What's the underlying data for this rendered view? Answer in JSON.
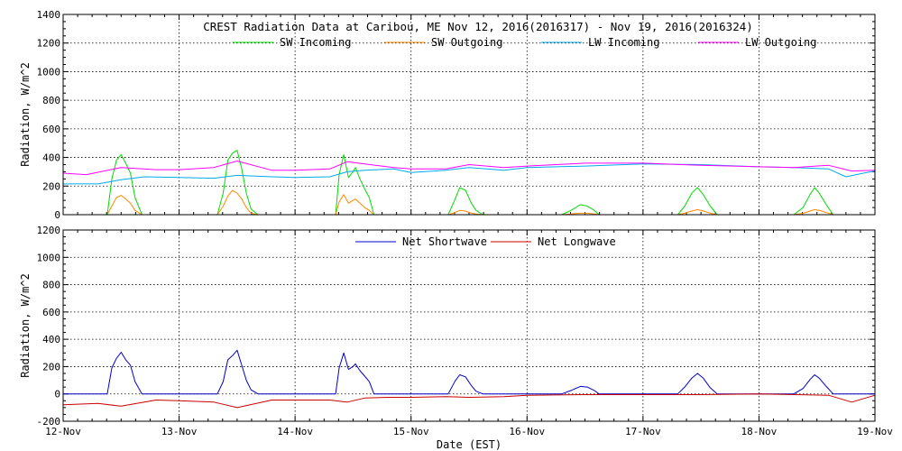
{
  "chart_data": [
    {
      "type": "line",
      "title": "CREST Radiation Data at Caribou, ME   Nov 12, 2016(2016317) - Nov 19, 2016(2016324)",
      "xlabel": "",
      "ylabel": "Radiation, W/m^2",
      "x_unit": "day offset from 12-Nov",
      "xlim": [
        0,
        7
      ],
      "ylim": [
        0,
        1400
      ],
      "yticks": [
        0,
        200,
        400,
        600,
        800,
        1000,
        1200,
        1400
      ],
      "grid": true,
      "legend_position": "top-center",
      "series": [
        {
          "name": "SW Incoming",
          "color": "#00dd00",
          "x": [
            0.0,
            0.38,
            0.42,
            0.46,
            0.5,
            0.54,
            0.58,
            0.62,
            0.68,
            1.0,
            1.33,
            1.38,
            1.42,
            1.46,
            1.5,
            1.54,
            1.58,
            1.62,
            1.68,
            2.0,
            2.35,
            2.38,
            2.42,
            2.46,
            2.5,
            2.52,
            2.56,
            2.6,
            2.64,
            2.68,
            3.0,
            3.32,
            3.38,
            3.42,
            3.47,
            3.52,
            3.56,
            3.62,
            4.0,
            4.3,
            4.38,
            4.46,
            4.52,
            4.58,
            4.62,
            5.0,
            5.3,
            5.36,
            5.42,
            5.47,
            5.52,
            5.58,
            5.64,
            6.0,
            6.3,
            6.38,
            6.44,
            6.48,
            6.52,
            6.58,
            6.64,
            7.0
          ],
          "y": [
            0,
            0,
            250,
            380,
            420,
            360,
            290,
            120,
            0,
            0,
            0,
            150,
            380,
            430,
            450,
            320,
            150,
            40,
            0,
            0,
            0,
            280,
            420,
            260,
            300,
            330,
            250,
            180,
            120,
            0,
            0,
            0,
            110,
            190,
            170,
            80,
            30,
            0,
            0,
            0,
            30,
            70,
            60,
            30,
            0,
            0,
            0,
            60,
            150,
            190,
            140,
            60,
            0,
            0,
            0,
            50,
            140,
            190,
            150,
            70,
            0,
            0
          ]
        },
        {
          "name": "SW Outgoing",
          "color": "#ff8800",
          "x": [
            0.0,
            0.38,
            0.42,
            0.46,
            0.5,
            0.54,
            0.58,
            0.62,
            0.68,
            1.0,
            1.33,
            1.38,
            1.42,
            1.46,
            1.5,
            1.54,
            1.58,
            1.62,
            1.68,
            2.0,
            2.35,
            2.38,
            2.42,
            2.46,
            2.5,
            2.52,
            2.56,
            2.6,
            2.64,
            2.68,
            3.0,
            3.32,
            3.38,
            3.42,
            3.47,
            3.52,
            3.56,
            3.62,
            4.0,
            4.3,
            4.38,
            4.46,
            4.52,
            4.58,
            4.62,
            5.0,
            5.3,
            5.36,
            5.42,
            5.47,
            5.52,
            5.58,
            5.64,
            6.0,
            6.3,
            6.38,
            6.44,
            6.48,
            6.52,
            6.58,
            6.64,
            7.0
          ],
          "y": [
            0,
            0,
            60,
            120,
            135,
            110,
            80,
            30,
            0,
            0,
            0,
            60,
            130,
            170,
            150,
            110,
            50,
            10,
            0,
            0,
            0,
            90,
            140,
            80,
            100,
            110,
            80,
            50,
            30,
            0,
            0,
            0,
            15,
            30,
            25,
            10,
            5,
            0,
            0,
            0,
            5,
            10,
            10,
            5,
            0,
            0,
            0,
            10,
            25,
            35,
            25,
            10,
            0,
            0,
            0,
            10,
            25,
            35,
            30,
            15,
            0,
            0
          ]
        },
        {
          "name": "LW Incoming",
          "color": "#00aaee",
          "x": [
            0.0,
            0.3,
            0.5,
            0.7,
            1.0,
            1.3,
            1.5,
            1.8,
            2.0,
            2.3,
            2.45,
            2.6,
            2.85,
            3.0,
            3.3,
            3.5,
            3.8,
            4.0,
            4.5,
            5.0,
            5.5,
            6.0,
            6.3,
            6.6,
            6.75,
            6.9,
            7.0
          ],
          "y": [
            215,
            215,
            245,
            265,
            260,
            255,
            275,
            265,
            260,
            265,
            300,
            310,
            320,
            295,
            310,
            330,
            310,
            330,
            340,
            355,
            350,
            335,
            330,
            320,
            265,
            290,
            305
          ]
        },
        {
          "name": "LW Outgoing",
          "color": "#ff00ff",
          "x": [
            0.0,
            0.2,
            0.5,
            0.8,
            1.0,
            1.3,
            1.5,
            1.8,
            2.0,
            2.3,
            2.45,
            2.6,
            2.85,
            3.0,
            3.3,
            3.5,
            3.8,
            4.0,
            4.5,
            5.0,
            5.5,
            6.0,
            6.3,
            6.6,
            6.8,
            7.0
          ],
          "y": [
            290,
            280,
            330,
            315,
            315,
            330,
            375,
            310,
            310,
            320,
            370,
            355,
            330,
            320,
            320,
            350,
            330,
            340,
            360,
            360,
            345,
            335,
            330,
            345,
            305,
            310
          ]
        }
      ]
    },
    {
      "type": "line",
      "title": "",
      "xlabel": "Date (EST)",
      "ylabel": "Radiation, W/m^2",
      "x_unit": "day offset from 12-Nov",
      "xlim": [
        0,
        7
      ],
      "ylim": [
        -200,
        1200
      ],
      "yticks": [
        -200,
        0,
        200,
        400,
        600,
        800,
        1000,
        1200
      ],
      "categories": [
        "12-Nov",
        "13-Nov",
        "14-Nov",
        "15-Nov",
        "16-Nov",
        "17-Nov",
        "18-Nov",
        "19-Nov"
      ],
      "grid": true,
      "legend_position": "top-center",
      "series": [
        {
          "name": "Net Shortwave",
          "color": "#0000cc",
          "x": [
            0.0,
            0.38,
            0.42,
            0.46,
            0.5,
            0.54,
            0.58,
            0.62,
            0.68,
            1.0,
            1.33,
            1.38,
            1.42,
            1.46,
            1.5,
            1.54,
            1.58,
            1.62,
            1.68,
            2.0,
            2.35,
            2.38,
            2.42,
            2.46,
            2.5,
            2.52,
            2.56,
            2.6,
            2.64,
            2.68,
            3.0,
            3.32,
            3.38,
            3.42,
            3.47,
            3.52,
            3.56,
            3.62,
            4.0,
            4.3,
            4.38,
            4.46,
            4.52,
            4.58,
            4.62,
            5.0,
            5.3,
            5.36,
            5.42,
            5.47,
            5.52,
            5.58,
            5.64,
            6.0,
            6.3,
            6.38,
            6.44,
            6.48,
            6.52,
            6.58,
            6.64,
            7.0
          ],
          "y": [
            0,
            0,
            190,
            260,
            305,
            250,
            210,
            90,
            0,
            0,
            0,
            90,
            250,
            280,
            320,
            210,
            100,
            30,
            0,
            0,
            0,
            190,
            300,
            180,
            200,
            220,
            170,
            130,
            90,
            0,
            0,
            0,
            95,
            140,
            125,
            60,
            20,
            0,
            0,
            0,
            25,
            55,
            50,
            25,
            0,
            0,
            0,
            50,
            115,
            150,
            115,
            45,
            0,
            0,
            0,
            40,
            105,
            140,
            115,
            55,
            0,
            0
          ]
        },
        {
          "name": "Net Longwave",
          "color": "#cc0000",
          "x": [
            0.0,
            0.3,
            0.5,
            0.8,
            1.0,
            1.3,
            1.5,
            1.8,
            2.0,
            2.3,
            2.45,
            2.6,
            2.8,
            3.0,
            3.3,
            3.5,
            3.8,
            4.0,
            4.5,
            5.0,
            5.5,
            6.0,
            6.3,
            6.6,
            6.8,
            7.0
          ],
          "y": [
            -80,
            -70,
            -90,
            -45,
            -50,
            -60,
            -100,
            -45,
            -45,
            -45,
            -60,
            -30,
            -25,
            -25,
            -20,
            -25,
            -20,
            -10,
            -5,
            -5,
            -5,
            0,
            -5,
            -10,
            -60,
            -10
          ]
        }
      ]
    }
  ]
}
